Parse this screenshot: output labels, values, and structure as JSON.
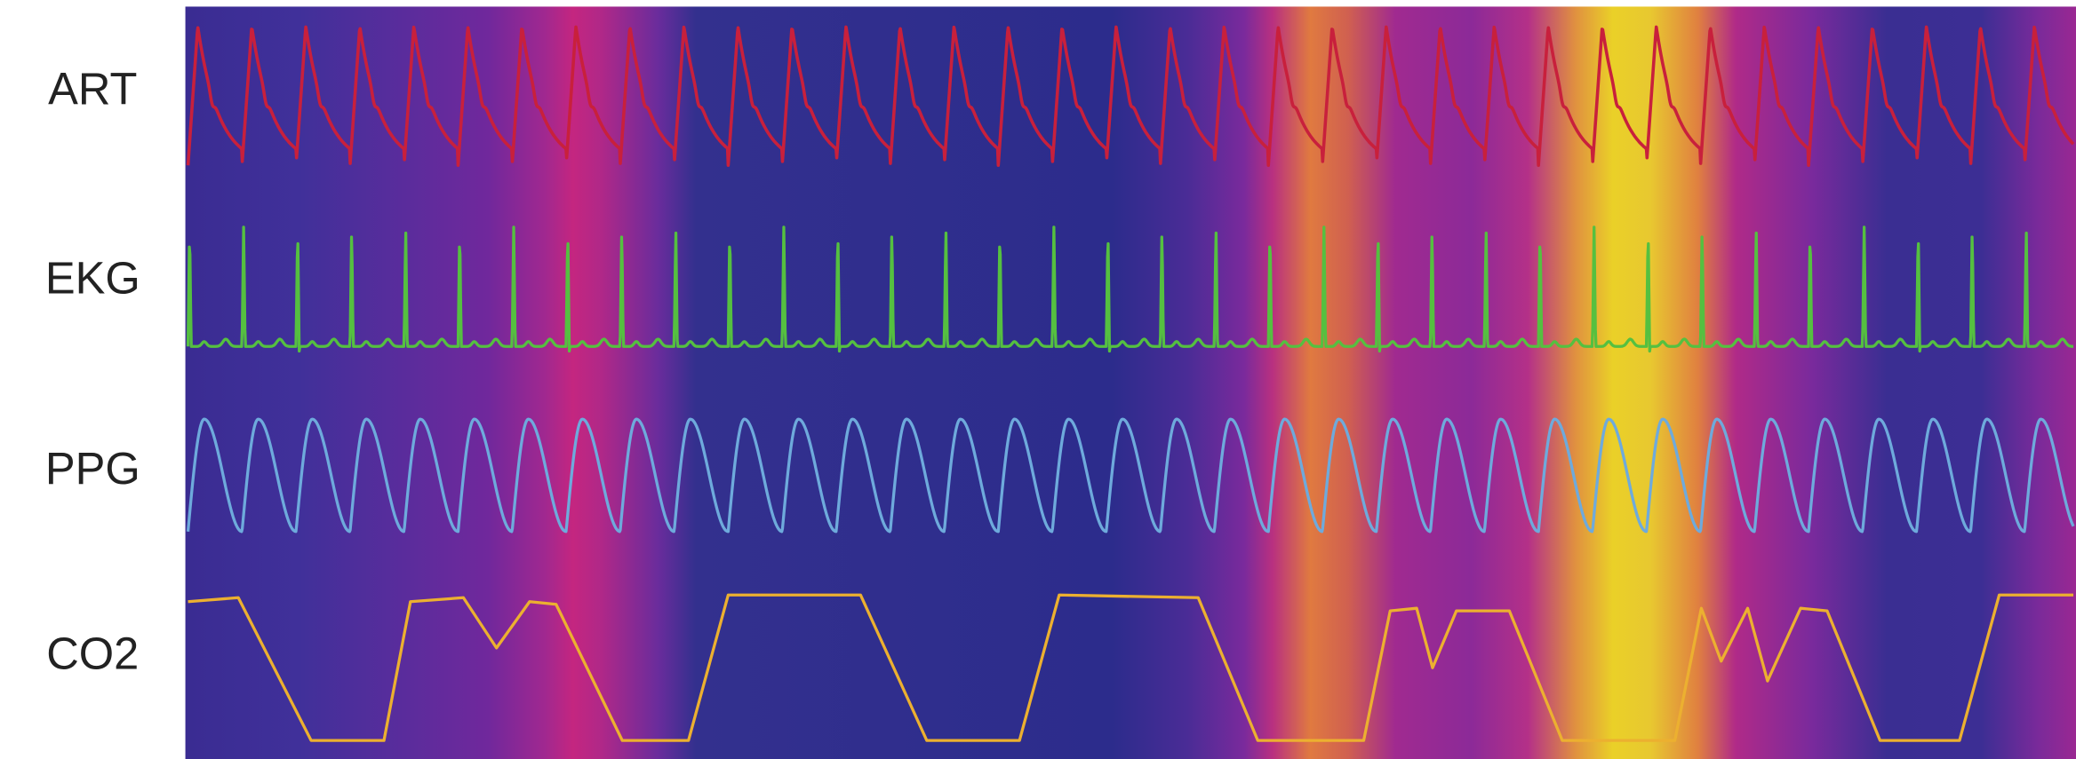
{
  "signals": [
    {
      "label": "ART"
    },
    {
      "label": "EKG"
    },
    {
      "label": "PPG"
    },
    {
      "label": "CO2"
    }
  ]
}
